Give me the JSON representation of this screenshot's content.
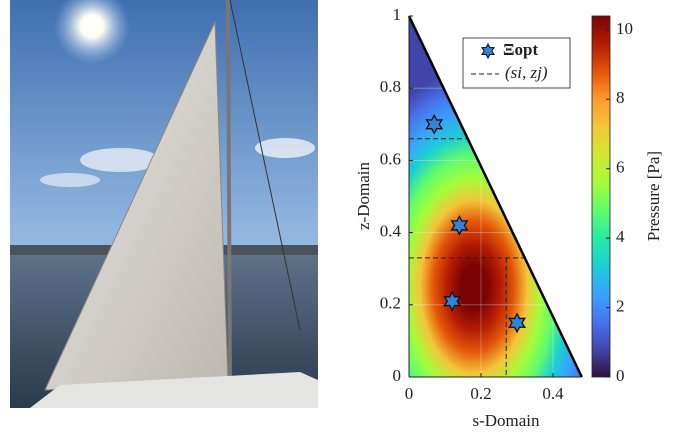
{
  "chart_data": {
    "type": "scatter",
    "xlabel": "s-Domain",
    "ylabel": "z-Domain",
    "xlim": [
      0,
      0.48
    ],
    "xticks": [
      0,
      0.2,
      0.4
    ],
    "ylim": [
      0,
      1
    ],
    "yticks": [
      0,
      0.2,
      0.4,
      0.6,
      0.8,
      1
    ],
    "grid": true,
    "series": [
      {
        "name": "Ξopt",
        "color": "#2f86d8",
        "x": [
          0.07,
          0.14,
          0.12,
          0.3
        ],
        "y": [
          0.7,
          0.42,
          0.21,
          0.15
        ]
      }
    ],
    "dashed": {
      "name": "(si, zj)",
      "z": [
        0.33,
        0.66
      ],
      "s": [
        0.27
      ]
    },
    "heatmap": {
      "colormap": "turbo",
      "peak_s": 0.18,
      "peak_z": 0.25,
      "peak_value": 10.4
    },
    "colorbar": {
      "label": "Pressure [Pa]",
      "clim": [
        0,
        10.4
      ],
      "ticks": [
        0,
        2,
        4,
        6,
        8,
        10
      ]
    },
    "legend": "upper right"
  }
}
